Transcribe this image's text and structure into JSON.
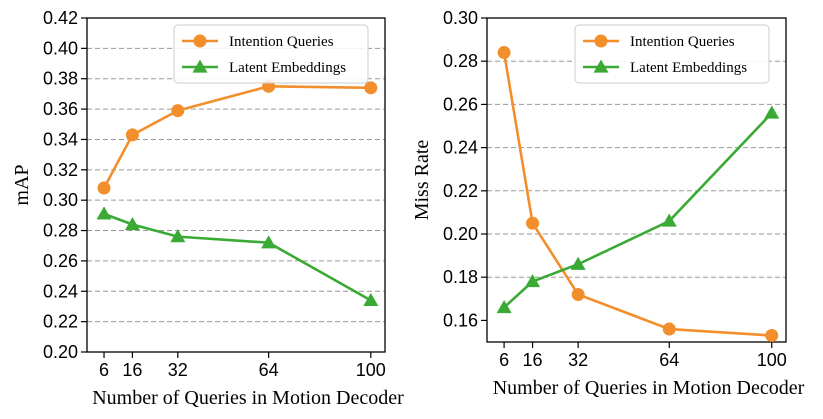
{
  "chart_data": [
    {
      "type": "line",
      "title": "",
      "xlabel": "Number of Queries in Motion Decoder",
      "ylabel": "mAP",
      "x": [
        6,
        16,
        32,
        64,
        100
      ],
      "xticks": [
        "6",
        "16",
        "32",
        "64",
        "100"
      ],
      "xlim": [
        0,
        105
      ],
      "ylim": [
        0.2,
        0.42
      ],
      "yticks": [
        "0.20",
        "0.22",
        "0.24",
        "0.26",
        "0.28",
        "0.30",
        "0.32",
        "0.34",
        "0.36",
        "0.38",
        "0.40",
        "0.42"
      ],
      "grid": "horizontal-dashed",
      "legend_position": "top-right",
      "series": [
        {
          "name": "Intention Queries",
          "color": "#F28E2B",
          "marker": "circle",
          "values": [
            0.308,
            0.343,
            0.359,
            0.375,
            0.374
          ]
        },
        {
          "name": "Latent Embeddings",
          "color": "#3BAA35",
          "marker": "triangle",
          "values": [
            0.291,
            0.284,
            0.276,
            0.272,
            0.234
          ]
        }
      ]
    },
    {
      "type": "line",
      "title": "",
      "xlabel": "Number of Queries in Motion Decoder",
      "ylabel": "Miss Rate",
      "x": [
        6,
        16,
        32,
        64,
        100
      ],
      "xticks": [
        "6",
        "16",
        "32",
        "64",
        "100"
      ],
      "xlim": [
        0,
        105
      ],
      "ylim": [
        0.15,
        0.3
      ],
      "yticks": [
        "0.16",
        "0.18",
        "0.20",
        "0.22",
        "0.24",
        "0.26",
        "0.28",
        "0.30"
      ],
      "grid": "horizontal-dashed",
      "legend_position": "top-right",
      "series": [
        {
          "name": "Intention Queries",
          "color": "#F28E2B",
          "marker": "circle",
          "values": [
            0.284,
            0.205,
            0.172,
            0.156,
            0.153
          ]
        },
        {
          "name": "Latent Embeddings",
          "color": "#3BAA35",
          "marker": "triangle",
          "values": [
            0.166,
            0.178,
            0.186,
            0.206,
            0.256
          ]
        }
      ]
    }
  ]
}
